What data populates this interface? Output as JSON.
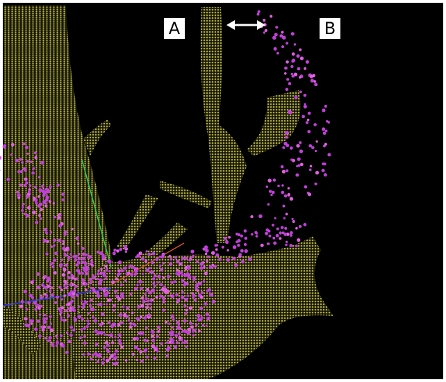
{
  "labels": {
    "left": "A",
    "right": "B"
  }
}
